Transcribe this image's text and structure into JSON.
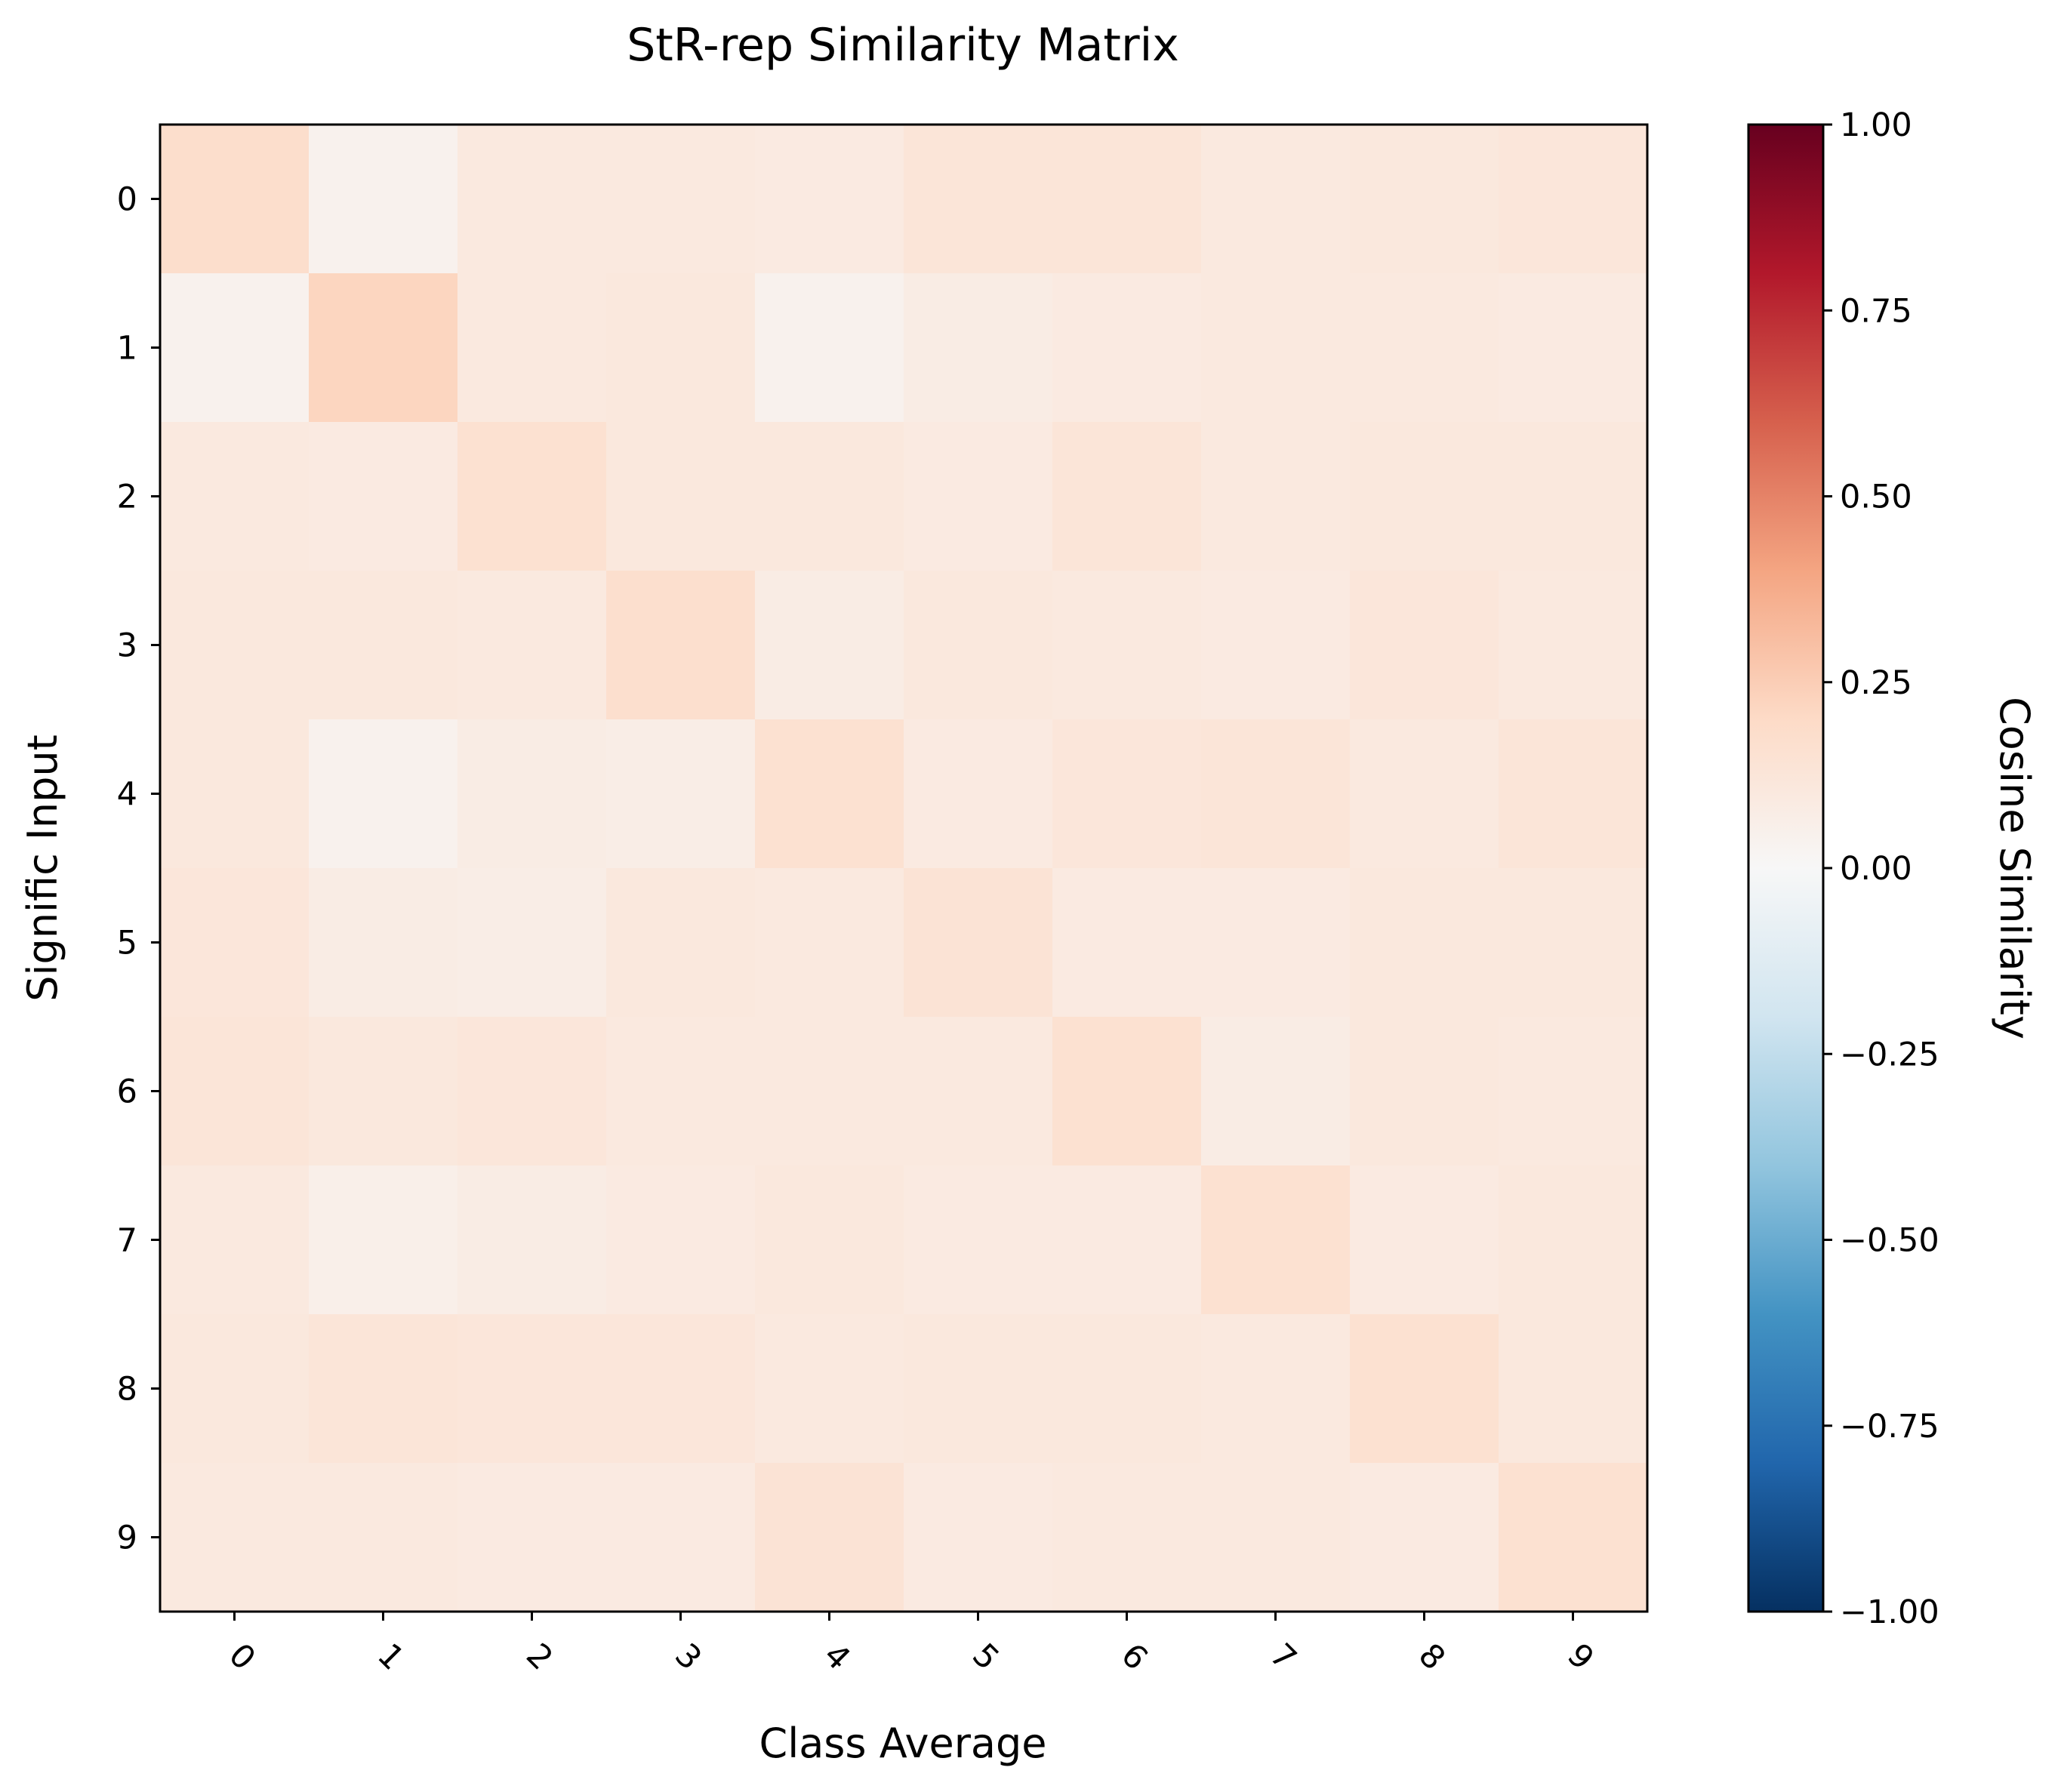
{
  "chart_data": {
    "type": "heatmap",
    "title": "StR-rep Similarity Matrix",
    "xlabel": "Class Average",
    "ylabel": "Signific​ Input",
    "x_categories": [
      "0",
      "1",
      "2",
      "3",
      "4",
      "5",
      "6",
      "7",
      "8",
      "9"
    ],
    "y_categories": [
      "0",
      "1",
      "2",
      "3",
      "4",
      "5",
      "6",
      "7",
      "8",
      "9"
    ],
    "x_tick_rotation_deg": 45,
    "values": [
      [
        0.18,
        0.04,
        0.1,
        0.1,
        0.09,
        0.13,
        0.13,
        0.1,
        0.11,
        0.12
      ],
      [
        0.04,
        0.22,
        0.1,
        0.11,
        0.04,
        0.08,
        0.09,
        0.1,
        0.1,
        0.09
      ],
      [
        0.1,
        0.09,
        0.16,
        0.11,
        0.11,
        0.09,
        0.13,
        0.1,
        0.11,
        0.11
      ],
      [
        0.11,
        0.11,
        0.1,
        0.17,
        0.08,
        0.11,
        0.1,
        0.09,
        0.12,
        0.1
      ],
      [
        0.11,
        0.04,
        0.08,
        0.07,
        0.16,
        0.09,
        0.12,
        0.13,
        0.1,
        0.13
      ],
      [
        0.12,
        0.08,
        0.07,
        0.11,
        0.1,
        0.14,
        0.09,
        0.09,
        0.11,
        0.11
      ],
      [
        0.13,
        0.11,
        0.12,
        0.1,
        0.1,
        0.1,
        0.16,
        0.08,
        0.11,
        0.1
      ],
      [
        0.1,
        0.06,
        0.08,
        0.09,
        0.11,
        0.09,
        0.09,
        0.16,
        0.09,
        0.11
      ],
      [
        0.11,
        0.13,
        0.12,
        0.12,
        0.1,
        0.11,
        0.11,
        0.1,
        0.16,
        0.11
      ],
      [
        0.1,
        0.1,
        0.09,
        0.09,
        0.14,
        0.09,
        0.1,
        0.1,
        0.09,
        0.16
      ]
    ],
    "colorbar": {
      "label": "Cosine Similarity",
      "colormap": "RdBu_r",
      "vmin": -1.0,
      "vmax": 1.0,
      "ticks": [
        1.0,
        0.75,
        0.5,
        0.25,
        0.0,
        -0.25,
        -0.5,
        -0.75,
        -1.0
      ],
      "tick_labels": [
        "1.00",
        "0.75",
        "0.50",
        "0.25",
        "0.00",
        "−0.25",
        "−0.50",
        "−0.75",
        "−1.00"
      ],
      "color_stops": [
        "#053061",
        "#2166ac",
        "#4393c3",
        "#92c5de",
        "#d1e5f0",
        "#f7f7f7",
        "#fddbc7",
        "#f4a582",
        "#d6604d",
        "#b2182b",
        "#67001f"
      ]
    },
    "grid": false
  }
}
